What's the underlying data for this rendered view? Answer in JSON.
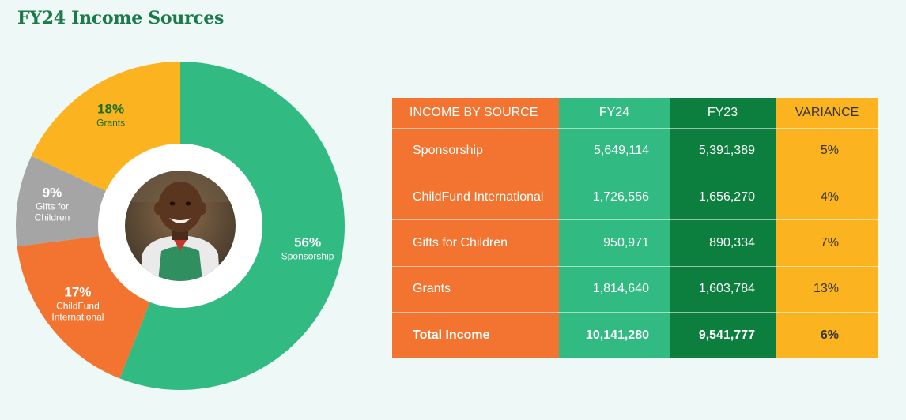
{
  "title": "FY24 Income Sources",
  "chart_data": [
    {
      "type": "pie",
      "slices": [
        {
          "pct_label": "56%",
          "name": "Sponsorship",
          "value": 56,
          "color": "#31bb82",
          "label_color": "#ffffff"
        },
        {
          "pct_label": "17%",
          "name": "ChildFund International",
          "value": 17,
          "color": "#f37430",
          "label_color": "#ffffff"
        },
        {
          "pct_label": "9%",
          "name": "Gifts for Children",
          "value": 9,
          "color": "#a5a5a5",
          "label_color": "#ffffff"
        },
        {
          "pct_label": "18%",
          "name": "Grants",
          "value": 18,
          "color": "#fbb41f",
          "label_color": "#1b6e1f"
        }
      ]
    },
    {
      "type": "table",
      "headers": [
        "INCOME BY SOURCE",
        "FY24",
        "FY23",
        "VARIANCE"
      ],
      "rows": [
        [
          "Sponsorship",
          "5,649,114",
          "5,391,389",
          "5%"
        ],
        [
          "ChildFund International",
          "1,726,556",
          "1,656,270",
          "4%"
        ],
        [
          "Gifts for Children",
          "950,971",
          "890,334",
          "7%"
        ],
        [
          "Grants",
          "1,814,640",
          "1,603,784",
          "13%"
        ],
        [
          "Total Income",
          "10,141,280",
          "9,541,777",
          "6%"
        ]
      ]
    }
  ]
}
